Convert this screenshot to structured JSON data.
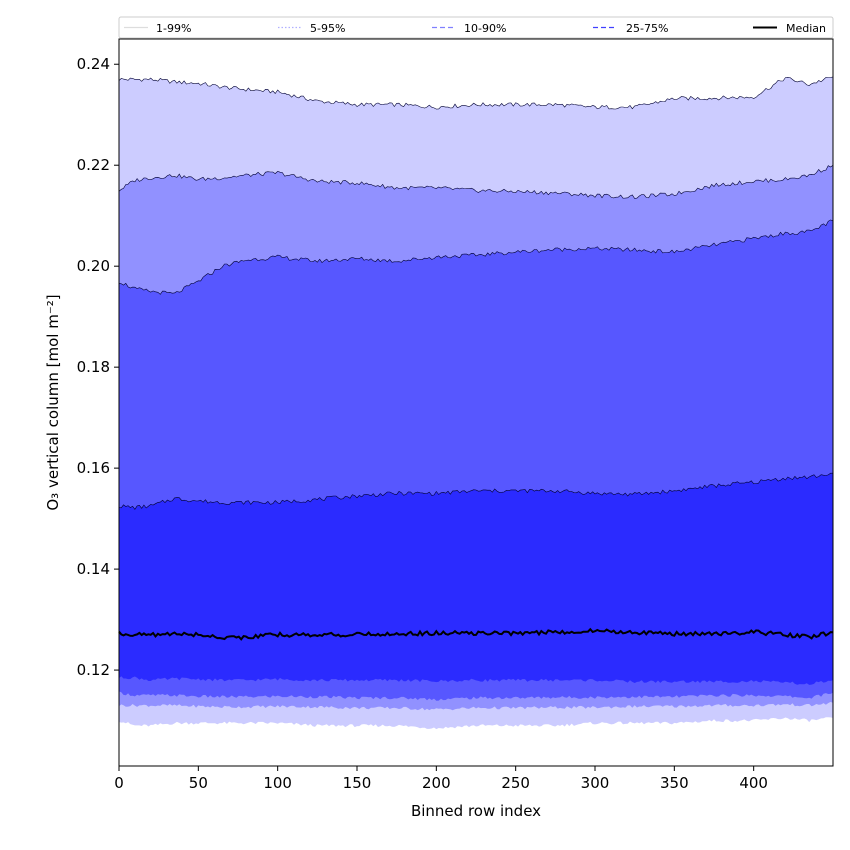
{
  "chart_data": {
    "type": "area",
    "xlabel": "Binned row index",
    "ylabel": "O₃ vertical column [mol m⁻²]",
    "xlim": [
      0,
      450
    ],
    "ylim": [
      0.101,
      0.245
    ],
    "x_ticks": [
      0,
      50,
      100,
      150,
      200,
      250,
      300,
      350,
      400
    ],
    "y_ticks": [
      0.12,
      0.14,
      0.16,
      0.18,
      0.2,
      0.22,
      0.24
    ],
    "legend_position": "top",
    "x": [
      0,
      10,
      20,
      35,
      50,
      65,
      80,
      100,
      125,
      150,
      175,
      200,
      225,
      250,
      275,
      300,
      325,
      350,
      375,
      400,
      420,
      435,
      450
    ],
    "bands": [
      {
        "name": "1-99%",
        "color": "#ccccff",
        "lower": [
          0.11,
          0.109,
          0.109,
          0.1095,
          0.1095,
          0.1095,
          0.1095,
          0.1095,
          0.109,
          0.109,
          0.109,
          0.1085,
          0.109,
          0.109,
          0.109,
          0.1095,
          0.1095,
          0.1095,
          0.11,
          0.11,
          0.1105,
          0.11,
          0.1105
        ],
        "upper": [
          0.237,
          0.237,
          0.237,
          0.2365,
          0.2362,
          0.2355,
          0.235,
          0.2345,
          0.2327,
          0.232,
          0.232,
          0.2315,
          0.232,
          0.232,
          0.232,
          0.2315,
          0.2315,
          0.2332,
          0.2333,
          0.2335,
          0.2373,
          0.236,
          0.2375
        ]
      },
      {
        "name": "5-95%",
        "color": "#9191ff",
        "lower": [
          0.113,
          0.113,
          0.113,
          0.113,
          0.1128,
          0.1127,
          0.1127,
          0.1128,
          0.1127,
          0.1125,
          0.1125,
          0.1122,
          0.1125,
          0.1125,
          0.1126,
          0.1126,
          0.1128,
          0.1128,
          0.113,
          0.113,
          0.1132,
          0.113,
          0.1135
        ],
        "upper": [
          0.215,
          0.217,
          0.2175,
          0.218,
          0.2172,
          0.2175,
          0.218,
          0.2185,
          0.2168,
          0.2165,
          0.2155,
          0.2155,
          0.215,
          0.2148,
          0.2145,
          0.214,
          0.2137,
          0.2143,
          0.216,
          0.2168,
          0.2172,
          0.218,
          0.22
        ]
      },
      {
        "name": "10-90%",
        "color": "#5757ff",
        "lower": [
          0.1155,
          0.115,
          0.115,
          0.115,
          0.1148,
          0.1147,
          0.1147,
          0.1148,
          0.1147,
          0.1145,
          0.1145,
          0.1142,
          0.1145,
          0.1145,
          0.1146,
          0.1146,
          0.1147,
          0.1147,
          0.115,
          0.115,
          0.1148,
          0.1145,
          0.1155
        ],
        "upper": [
          0.197,
          0.1955,
          0.195,
          0.1945,
          0.197,
          0.2,
          0.2012,
          0.2018,
          0.201,
          0.2015,
          0.201,
          0.2018,
          0.2022,
          0.2028,
          0.2033,
          0.2035,
          0.2032,
          0.2028,
          0.2042,
          0.2055,
          0.2065,
          0.2068,
          0.209
        ]
      },
      {
        "name": "25-75%",
        "color": "#2b2bff",
        "lower": [
          0.1185,
          0.1185,
          0.118,
          0.1183,
          0.1182,
          0.118,
          0.118,
          0.1182,
          0.118,
          0.118,
          0.118,
          0.1178,
          0.118,
          0.118,
          0.118,
          0.118,
          0.1177,
          0.1177,
          0.1177,
          0.1178,
          0.1175,
          0.1172,
          0.118
        ],
        "upper": [
          0.1525,
          0.1522,
          0.1525,
          0.154,
          0.1535,
          0.1532,
          0.1532,
          0.1532,
          0.1538,
          0.1545,
          0.155,
          0.155,
          0.1555,
          0.1555,
          0.1555,
          0.155,
          0.1548,
          0.1555,
          0.1565,
          0.1572,
          0.158,
          0.1582,
          0.159
        ]
      }
    ],
    "median": {
      "name": "Median",
      "color": "#000000",
      "values": [
        0.1273,
        0.127,
        0.127,
        0.1272,
        0.127,
        0.1265,
        0.1265,
        0.127,
        0.127,
        0.127,
        0.1272,
        0.1273,
        0.1273,
        0.1273,
        0.1275,
        0.1278,
        0.1275,
        0.1272,
        0.1272,
        0.1275,
        0.127,
        0.1265,
        0.1275
      ]
    },
    "legend": [
      {
        "label": "1-99%",
        "style": "solid",
        "color": "#dddddd"
      },
      {
        "label": "5-95%",
        "style": "dotted",
        "color": "#b0b0ff"
      },
      {
        "label": "10-90%",
        "style": "dashed",
        "color": "#8080ff"
      },
      {
        "label": "25-75%",
        "style": "dashed",
        "color": "#4040ff"
      },
      {
        "label": "Median",
        "style": "solid",
        "color": "#000000"
      }
    ]
  }
}
